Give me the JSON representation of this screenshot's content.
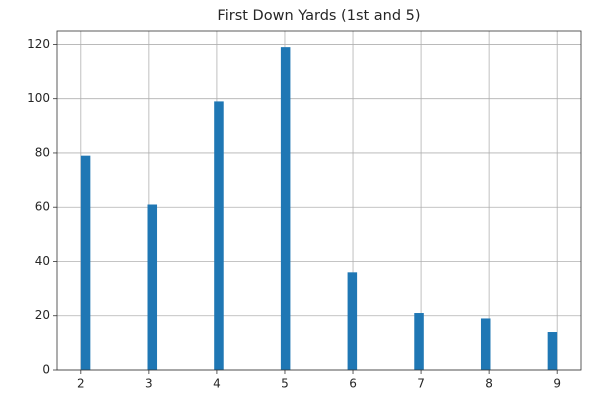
{
  "chart_data": {
    "type": "histogram",
    "title": "First Down Yards (1st and 5)",
    "bins": [
      2,
      2.14,
      2.28,
      2.42,
      2.56,
      2.7,
      2.84,
      2.98,
      3.12,
      3.26,
      3.4,
      3.54,
      3.68,
      3.82,
      3.96,
      4.1,
      4.24,
      4.38,
      4.52,
      4.66,
      4.8,
      4.94,
      5.08,
      5.22,
      5.36,
      5.5,
      5.64,
      5.78,
      5.92,
      6.06,
      6.2,
      6.34,
      6.48,
      6.62,
      6.76,
      6.9,
      7.04,
      7.18,
      7.32,
      7.46,
      7.6,
      7.74,
      7.88,
      8.02,
      8.16,
      8.3,
      8.44,
      8.58,
      8.72,
      8.86,
      9
    ],
    "values": [
      79,
      0,
      0,
      0,
      0,
      0,
      0,
      61,
      0,
      0,
      0,
      0,
      0,
      0,
      99,
      0,
      0,
      0,
      0,
      0,
      0,
      119,
      0,
      0,
      0,
      0,
      0,
      0,
      36,
      0,
      0,
      0,
      0,
      0,
      0,
      21,
      0,
      0,
      0,
      0,
      0,
      0,
      19,
      0,
      0,
      0,
      0,
      0,
      0,
      14
    ],
    "color": "#1f77b4",
    "xlim": [
      1.65,
      9.35
    ],
    "xticks": [
      2,
      3,
      4,
      5,
      6,
      7,
      8,
      9
    ],
    "ylim": [
      0,
      124.95
    ],
    "yticks": [
      0,
      20,
      40,
      60,
      80,
      100,
      120
    ],
    "grid": true
  }
}
